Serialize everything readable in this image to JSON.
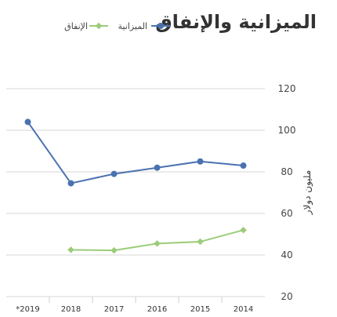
{
  "chart_data": {
    "type": "line",
    "title": "الميزانية والإنفاق",
    "categories": [
      "*2019",
      "2018",
      "2017",
      "2016",
      "2015",
      "2014"
    ],
    "series": [
      {
        "name": "الميزانية",
        "color": "#4a72b0",
        "values": [
          104,
          74.5,
          79,
          82,
          85,
          83
        ]
      },
      {
        "name": "الإنفاق",
        "color": "#9ccc7a",
        "values": [
          null,
          42.5,
          42.2,
          45.5,
          46.4,
          52
        ]
      }
    ],
    "ylabel": "مليون دولار",
    "ylim": [
      20,
      120
    ],
    "yticks": [
      20,
      40,
      60,
      80,
      100,
      120
    ],
    "grid": true,
    "legend_position": "top-left"
  }
}
